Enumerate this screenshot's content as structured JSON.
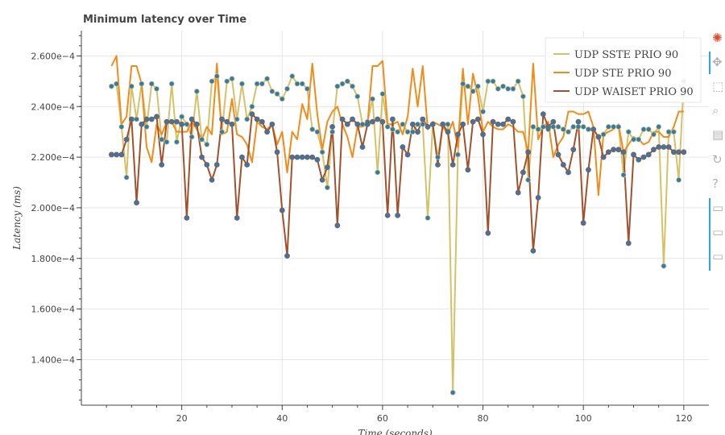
{
  "chart_data": {
    "type": "line",
    "title": "Minimum latency over Time",
    "xlabel": "Time (seconds)",
    "ylabel": "Latency (ms)",
    "xlim": [
      0,
      125
    ],
    "ylim": [
      0.000122,
      0.00027
    ],
    "xticks": [
      20,
      40,
      60,
      80,
      100,
      120
    ],
    "xtick_labels": [
      "20",
      "40",
      "60",
      "80",
      "100",
      "120"
    ],
    "yticks": [
      0.00014,
      0.00016,
      0.00018,
      0.0002,
      0.00022,
      0.00024,
      0.00026
    ],
    "ytick_labels": [
      "1.400e−4",
      "1.600e−4",
      "1.800e−4",
      "2.000e−4",
      "2.200e−4",
      "2.400e−4",
      "2.600e−4"
    ],
    "grid": true,
    "legend_position": "top-right",
    "x": [
      6,
      7,
      8,
      9,
      10,
      11,
      12,
      13,
      14,
      15,
      16,
      17,
      18,
      19,
      20,
      21,
      22,
      23,
      24,
      25,
      26,
      27,
      28,
      29,
      30,
      31,
      32,
      33,
      34,
      35,
      36,
      37,
      38,
      39,
      40,
      41,
      42,
      43,
      44,
      45,
      46,
      47,
      48,
      49,
      50,
      51,
      52,
      53,
      54,
      55,
      56,
      57,
      58,
      59,
      60,
      61,
      62,
      63,
      64,
      65,
      66,
      67,
      68,
      69,
      70,
      71,
      72,
      73,
      74,
      75,
      76,
      77,
      78,
      79,
      80,
      81,
      82,
      83,
      84,
      85,
      86,
      87,
      88,
      89,
      90,
      91,
      92,
      93,
      94,
      95,
      96,
      97,
      98,
      99,
      100,
      101,
      102,
      103,
      104,
      105,
      106,
      107,
      108,
      109,
      110,
      111,
      112,
      113,
      114,
      115,
      116,
      117,
      118,
      119,
      120
    ],
    "series": [
      {
        "name": "UDP SSTE PRIO 90",
        "color": "#d4c26a",
        "values": [
          0.000248,
          0.000249,
          0.000232,
          0.000212,
          0.000248,
          0.000235,
          0.000249,
          0.000232,
          0.000249,
          0.000247,
          0.000227,
          0.000226,
          0.000249,
          0.000226,
          0.000236,
          0.000233,
          0.000228,
          0.000246,
          0.000227,
          0.000225,
          0.00025,
          0.000252,
          0.00023,
          0.00025,
          0.000251,
          0.000235,
          0.000249,
          0.000235,
          0.00024,
          0.000249,
          0.000249,
          0.000251,
          0.000246,
          0.000245,
          0.000243,
          0.000247,
          0.000252,
          0.000249,
          0.000249,
          0.000247,
          0.000231,
          0.00023,
          0.000222,
          0.000208,
          0.00023,
          0.000248,
          0.000249,
          0.00025,
          0.000248,
          0.000244,
          0.000233,
          0.000234,
          0.000243,
          0.000214,
          0.000245,
          0.000232,
          0.000231,
          0.00023,
          0.000233,
          0.00023,
          0.00023,
          0.000233,
          0.000233,
          0.000196,
          0.000233,
          0.00022,
          0.000233,
          0.000233,
          0.000127,
          0.000221,
          0.000249,
          0.000248,
          0.000246,
          0.000248,
          0.000238,
          0.00025,
          0.00025,
          0.000247,
          0.000248,
          0.000247,
          0.000247,
          0.00025,
          0.000244,
          0.000211,
          0.000232,
          0.000231,
          0.000232,
          0.000231,
          0.000232,
          0.000232,
          0.000231,
          0.00023,
          0.000232,
          0.000232,
          0.000232,
          0.000231,
          0.000231,
          0.000228,
          0.000229,
          0.000232,
          0.000232,
          0.000232,
          0.000213,
          0.00023,
          0.000227,
          0.000227,
          0.000231,
          0.000231,
          0.000229,
          0.000232,
          0.000177,
          0.00023,
          0.00023,
          0.000211,
          0.00025
        ],
        "show_points": true
      },
      {
        "name": "UDP STE PRIO 90",
        "color": "#f08c1a",
        "values": [
          0.000256,
          0.00026,
          0.000233,
          0.000236,
          0.000256,
          0.000256,
          0.000249,
          0.000224,
          0.000218,
          0.000233,
          0.000229,
          0.000234,
          0.000234,
          0.00023,
          0.00023,
          0.00023,
          0.000234,
          0.000231,
          0.000227,
          0.000232,
          0.000229,
          0.000257,
          0.000229,
          0.00023,
          0.000243,
          0.000229,
          0.000228,
          0.000225,
          0.000218,
          0.000234,
          0.000232,
          0.000231,
          0.000233,
          0.000225,
          0.00023,
          0.000214,
          0.00023,
          0.000227,
          0.000241,
          0.000235,
          0.000257,
          0.000237,
          0.000223,
          0.000234,
          0.000238,
          0.00024,
          0.000233,
          0.000228,
          0.00022,
          0.000232,
          0.000232,
          0.000233,
          0.000256,
          0.000256,
          0.000258,
          0.000233,
          0.000233,
          0.000234,
          0.000229,
          0.000236,
          0.000255,
          0.00024,
          0.000256,
          0.000231,
          0.000234,
          0.000233,
          0.000232,
          0.000229,
          0.000234,
          0.000224,
          0.000255,
          0.000233,
          0.000253,
          0.000244,
          0.00023,
          0.000234,
          0.000232,
          0.000231,
          0.000231,
          0.000233,
          0.000232,
          0.00023,
          0.00023,
          0.000222,
          0.000257,
          0.000227,
          0.000232,
          0.000234,
          0.00022,
          0.000225,
          0.000228,
          0.000238,
          0.000238,
          0.000237,
          0.000237,
          0.000238,
          0.000232,
          0.000205,
          0.000229,
          0.00023,
          0.000231,
          0.000233,
          0.000222,
          0.000225,
          0.000228,
          0.000227,
          0.000225,
          0.000226,
          0.00023,
          0.00023,
          0.000228,
          0.000228,
          0.000232,
          0.000238,
          0.000238
        ],
        "show_points": false
      },
      {
        "name": "UDP WAISET PRIO 90",
        "color": "#a0522d",
        "values": [
          0.000221,
          0.000221,
          0.000221,
          0.000227,
          0.000235,
          0.000202,
          0.000233,
          0.000235,
          0.000235,
          0.000236,
          0.000217,
          0.000234,
          0.000234,
          0.000234,
          0.000233,
          0.000196,
          0.000235,
          0.000233,
          0.00022,
          0.000217,
          0.000211,
          0.000217,
          0.000235,
          0.000234,
          0.000233,
          0.000196,
          0.00022,
          0.000217,
          0.000237,
          0.000235,
          0.000234,
          0.00023,
          0.000233,
          0.000222,
          0.000199,
          0.000181,
          0.00022,
          0.00022,
          0.00022,
          0.00022,
          0.00022,
          0.000219,
          0.000211,
          0.000216,
          0.000232,
          0.000193,
          0.000235,
          0.000233,
          0.000235,
          0.000233,
          0.000224,
          0.000233,
          0.000234,
          0.000235,
          0.000234,
          0.000197,
          0.000235,
          0.000197,
          0.000224,
          0.000221,
          0.000233,
          0.00023,
          0.000235,
          0.000232,
          0.000233,
          0.000217,
          0.000233,
          0.00023,
          0.000217,
          0.000229,
          0.000233,
          0.000215,
          0.000234,
          0.000235,
          0.000229,
          0.00019,
          0.000234,
          0.000233,
          0.000233,
          0.000235,
          0.000234,
          0.000206,
          0.000214,
          0.000222,
          0.000183,
          0.000204,
          0.000237,
          0.000232,
          0.000234,
          0.000221,
          0.000217,
          0.000214,
          0.000223,
          0.000234,
          0.000194,
          0.000215,
          0.000231,
          0.000228,
          0.00022,
          0.000222,
          0.000223,
          0.000223,
          0.000222,
          0.000186,
          0.000221,
          0.000219,
          0.00022,
          0.000221,
          0.000223,
          0.000224,
          0.000224,
          0.000224,
          0.000222,
          0.000222,
          0.000222
        ],
        "show_points": true
      }
    ]
  },
  "toolbar": {
    "icons": [
      "bokeh-logo-icon",
      "pan-icon",
      "box-zoom-icon",
      "wheel-zoom-icon",
      "save-icon",
      "reset-icon",
      "help-icon",
      "hover-icon",
      "hover-icon",
      "hover-icon"
    ]
  },
  "colors": {
    "marker_fill": "#2b7bb9",
    "grid": "#e5e5e5",
    "axis": "#444444",
    "toolbar_active": "#26aae1"
  }
}
